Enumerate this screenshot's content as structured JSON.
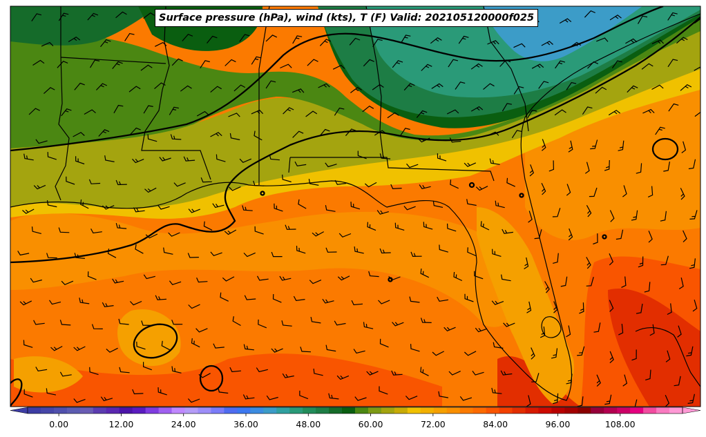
{
  "title": "Surface pressure (hPa), wind (kts), T (F) Valid: 202105120000f025",
  "colorbar": {
    "ticks": [
      "0.00",
      "12.00",
      "24.00",
      "36.00",
      "48.00",
      "60.00",
      "72.00",
      "84.00",
      "96.00",
      "108.00"
    ],
    "range": [
      -6,
      120
    ],
    "step": 3,
    "colors": [
      "#3d3da4",
      "#4646a8",
      "#5050ad",
      "#5c5cb1",
      "#6a5cb4",
      "#5b3cb0",
      "#5a28b0",
      "#4b14a8",
      "#5a1cc0",
      "#7f3ce0",
      "#a060f0",
      "#c088ff",
      "#b59cf7",
      "#9d8ef8",
      "#7b7cf8",
      "#4f6cf0",
      "#3c78f0",
      "#3c8ce0",
      "#3c9cc8",
      "#30a0a0",
      "#2a9a78",
      "#228c5a",
      "#1d7d45",
      "#156b2a",
      "#0a5e10",
      "#4b8712",
      "#7d9a14",
      "#a4a40f",
      "#c8ab05",
      "#f0c100",
      "#f2b000",
      "#f5a000",
      "#f98f00",
      "#fb7a00",
      "#fc6a00",
      "#f95500",
      "#f24000",
      "#e22e00",
      "#d61a00",
      "#cc0a00",
      "#b80000",
      "#a30000",
      "#8a0000",
      "#96003a",
      "#b30050",
      "#cc0066",
      "#e50080",
      "#f24ca0",
      "#f97ac0",
      "#ff99d5"
    ]
  },
  "map_colors": {
    "cyan_teal": "#3c9cc8",
    "green_dark": "#0a5e10",
    "green": "#1d7d45",
    "green_light": "#2a9a78",
    "olive": "#4b8712",
    "olive_yellow": "#a4a40f",
    "yellow": "#f0c100",
    "light_orange": "#f5a000",
    "orange": "#f98f00",
    "dark_orange": "#fb7a00",
    "red_orange": "#f95500",
    "red": "#e22e00"
  }
}
